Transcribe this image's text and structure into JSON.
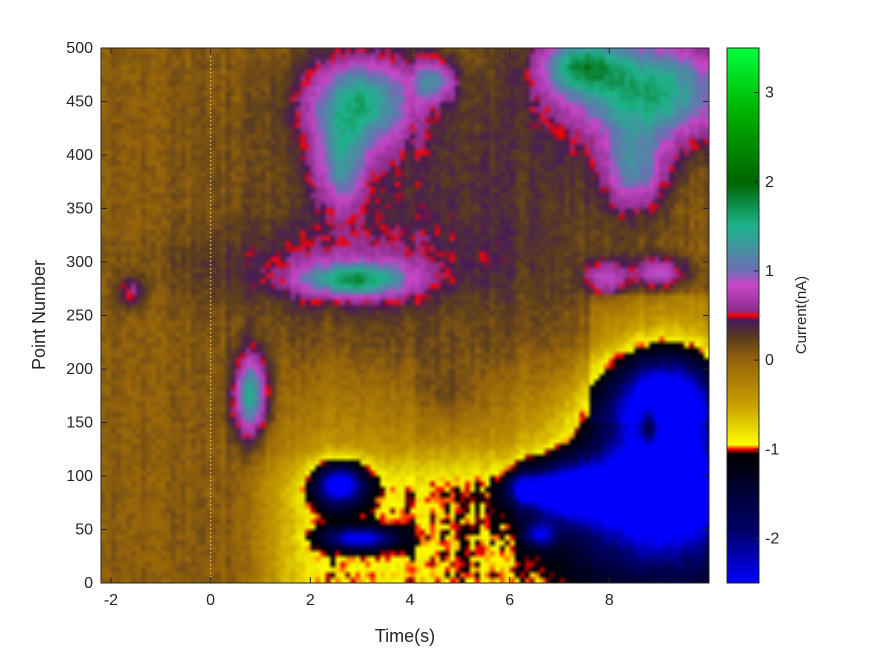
{
  "chart_data": {
    "type": "heatmap",
    "xlabel": "Time(s)",
    "ylabel": "Point Number",
    "colorbar_label": "Current(nA)",
    "xlim": [
      -2.2,
      10
    ],
    "ylim": [
      0,
      500
    ],
    "clim": [
      -2.5,
      3.5
    ],
    "xticks": [
      -2,
      0,
      2,
      4,
      6,
      8
    ],
    "xtick_labels": [
      "-2",
      "0",
      "2",
      "4",
      "6",
      "8"
    ],
    "yticks": [
      0,
      50,
      100,
      150,
      200,
      250,
      300,
      350,
      400,
      450,
      500
    ],
    "ytick_labels": [
      "0",
      "50",
      "100",
      "150",
      "200",
      "250",
      "300",
      "350",
      "400",
      "450",
      "500"
    ],
    "cticks": [
      -2,
      -1,
      0,
      1,
      2,
      3
    ],
    "ctick_labels": [
      "-2",
      "-1",
      "0",
      "1",
      "2",
      "3"
    ],
    "stimulus_time": 0,
    "grid": false,
    "colormap_stops": [
      {
        "value": -2.5,
        "color": "#0000ff"
      },
      {
        "value": -1.9,
        "color": "#000066"
      },
      {
        "value": -1.05,
        "color": "#000000"
      },
      {
        "value": -1.0,
        "color": "#ff0000"
      },
      {
        "value": -0.95,
        "color": "#ffff00"
      },
      {
        "value": -0.5,
        "color": "#c8a000"
      },
      {
        "value": 0.0,
        "color": "#96640a"
      },
      {
        "value": 0.25,
        "color": "#5a3c1e"
      },
      {
        "value": 0.45,
        "color": "#46195a"
      },
      {
        "value": 0.5,
        "color": "#ff0000"
      },
      {
        "value": 0.55,
        "color": "#8c2e8c"
      },
      {
        "value": 0.85,
        "color": "#c846c8"
      },
      {
        "value": 1.0,
        "color": "#6e6eb4"
      },
      {
        "value": 1.5,
        "color": "#1eb48c"
      },
      {
        "value": 2.0,
        "color": "#006400"
      },
      {
        "value": 2.8,
        "color": "#00b400"
      },
      {
        "value": 3.5,
        "color": "#00ff3c"
      }
    ],
    "grid_resolution": {
      "nt": 122,
      "np": 100
    },
    "features": [
      {
        "t": -1.6,
        "p": 272,
        "st": 0.18,
        "sp": 10,
        "a": 0.55
      },
      {
        "t": 0.8,
        "p": 175,
        "st": 0.25,
        "sp": 28,
        "a": 1.35
      },
      {
        "t": 2.9,
        "p": 283,
        "st": 0.75,
        "sp": 11,
        "a": 1.2
      },
      {
        "t": 3.0,
        "p": 450,
        "st": 0.75,
        "sp": 30,
        "a": 1.3
      },
      {
        "t": 2.6,
        "p": 390,
        "st": 0.35,
        "sp": 30,
        "a": 0.9
      },
      {
        "t": 4.5,
        "p": 470,
        "st": 0.3,
        "sp": 14,
        "a": 0.9
      },
      {
        "t": 8.8,
        "p": 460,
        "st": 1.2,
        "sp": 35,
        "a": 1.5
      },
      {
        "t": 7.4,
        "p": 485,
        "st": 0.55,
        "sp": 18,
        "a": 1.1
      },
      {
        "t": 8.5,
        "p": 385,
        "st": 0.45,
        "sp": 26,
        "a": 0.9
      },
      {
        "t": 9.0,
        "p": 290,
        "st": 0.4,
        "sp": 10,
        "a": 0.8
      },
      {
        "t": 7.9,
        "p": 285,
        "st": 0.3,
        "sp": 12,
        "a": 0.7
      },
      {
        "t": 4.5,
        "p": 360,
        "st": 2.6,
        "sp": 90,
        "a": 0.3
      },
      {
        "t": 2.4,
        "p": 295,
        "st": 2.0,
        "sp": 26,
        "a": 0.35
      },
      {
        "t": 2.6,
        "p": 92,
        "st": 0.35,
        "sp": 14,
        "a": -1.9
      },
      {
        "t": 3.0,
        "p": 42,
        "st": 0.5,
        "sp": 7,
        "a": -1.7
      },
      {
        "t": 6.6,
        "p": 45,
        "st": 0.22,
        "sp": 8,
        "a": -1.3
      },
      {
        "t": 6.3,
        "p": 88,
        "st": 0.25,
        "sp": 10,
        "a": -1.2
      },
      {
        "t": 7.1,
        "p": 85,
        "st": 0.6,
        "sp": 18,
        "a": -1.6
      },
      {
        "t": 9.0,
        "p": 90,
        "st": 1.25,
        "sp": 55,
        "a": -2.3
      },
      {
        "t": 9.1,
        "p": 175,
        "st": 0.8,
        "sp": 35,
        "a": -2.0
      },
      {
        "t": 8.8,
        "p": 148,
        "st": 0.15,
        "sp": 14,
        "a": 1.3
      },
      {
        "t": 4.8,
        "p": 175,
        "st": 0.5,
        "sp": 25,
        "a": 0.3
      }
    ]
  }
}
